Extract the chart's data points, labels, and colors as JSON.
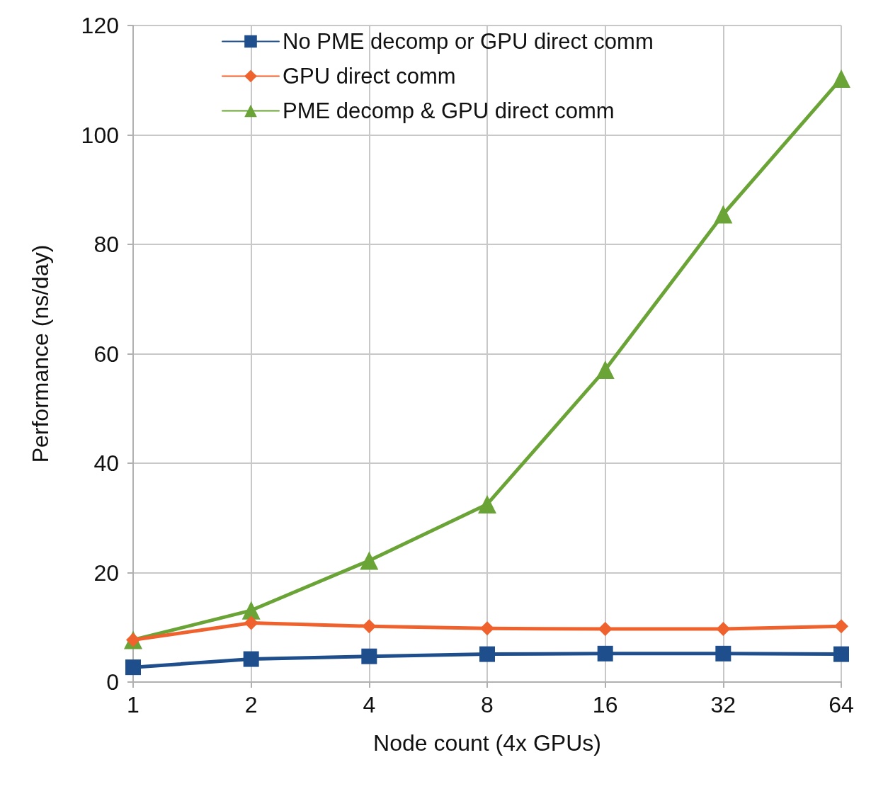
{
  "chart_data": {
    "type": "line",
    "xlabel": "Node count (4x GPUs)",
    "ylabel": "Performance (ns/day)",
    "categories": [
      "1",
      "2",
      "4",
      "8",
      "16",
      "32",
      "64"
    ],
    "series": [
      {
        "name": "No PME decomp or GPU direct comm",
        "color": "#1f4e8c",
        "marker": "square",
        "values": [
          2.7,
          4.2,
          4.7,
          5.1,
          5.2,
          5.2,
          5.1
        ]
      },
      {
        "name": "GPU direct comm",
        "color": "#f0622d",
        "marker": "diamond",
        "values": [
          7.7,
          10.8,
          10.2,
          9.8,
          9.7,
          9.7,
          10.2
        ]
      },
      {
        "name": "PME decomp & GPU direct comm",
        "color": "#6aa336",
        "marker": "triangle",
        "values": [
          7.7,
          13.1,
          22.2,
          32.5,
          57.1,
          85.5,
          110.3
        ]
      }
    ],
    "ylim": [
      0,
      120
    ],
    "yticks": [
      0,
      20,
      40,
      60,
      80,
      100,
      120
    ],
    "grid": true,
    "legend": "top left"
  }
}
